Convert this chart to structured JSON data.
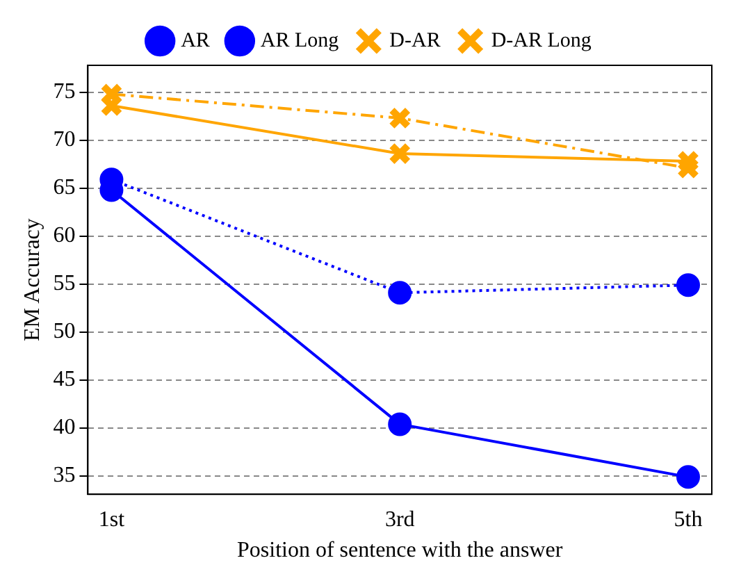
{
  "chart_data": {
    "type": "line",
    "xlabel": "Position of sentence with the answer",
    "ylabel": "EM Accuracy",
    "categories": [
      "1st",
      "3rd",
      "5th"
    ],
    "series": [
      {
        "name": "AR",
        "color": "#0000ff",
        "values": [
          64.8,
          40.4,
          34.9
        ],
        "marker": "circle",
        "line_style": "solid"
      },
      {
        "name": "AR Long",
        "color": "#0000ff",
        "values": [
          65.9,
          54.1,
          54.9
        ],
        "marker": "circle",
        "line_style": "dotted"
      },
      {
        "name": "D-AR",
        "color": "#ffa500",
        "values": [
          73.6,
          68.6,
          67.8
        ],
        "marker": "cross",
        "line_style": "solid"
      },
      {
        "name": "D-AR Long",
        "color": "#ffa500",
        "values": [
          74.8,
          72.3,
          67.1
        ],
        "marker": "cross",
        "line_style": "dashed"
      }
    ],
    "ylim": [
      33.1,
      77.8
    ],
    "yticks": [
      35,
      40,
      45,
      50,
      55,
      60,
      65,
      70,
      75
    ],
    "grid": "y",
    "legend": "top"
  }
}
